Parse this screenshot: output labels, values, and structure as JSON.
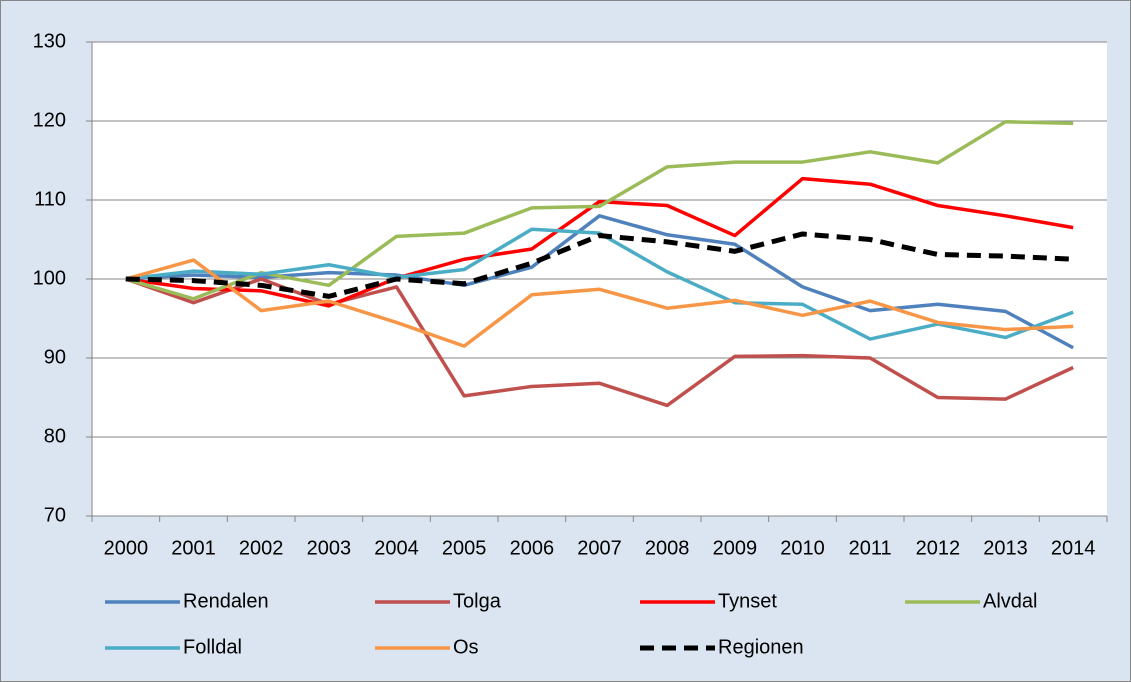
{
  "chart_data": {
    "type": "line",
    "categories": [
      "2000",
      "2001",
      "2002",
      "2003",
      "2004",
      "2005",
      "2006",
      "2007",
      "2008",
      "2009",
      "2010",
      "2011",
      "2012",
      "2013",
      "2014"
    ],
    "ylim": [
      70,
      130
    ],
    "yticks": [
      70,
      80,
      90,
      100,
      110,
      120,
      130
    ],
    "grid": true,
    "legend": "bottom",
    "series": [
      {
        "name": "Rendalen",
        "color": "#4f81bd",
        "values": [
          100,
          100.5,
          100.2,
          100.8,
          100.5,
          99.2,
          101.5,
          108,
          105.6,
          104.4,
          99,
          96,
          96.8,
          95.9,
          91.3
        ]
      },
      {
        "name": "Tolga",
        "color": "#c0504d",
        "values": [
          100,
          97,
          100,
          96.8,
          99,
          85.2,
          86.4,
          86.8,
          84,
          90.2,
          90.3,
          90,
          85,
          84.8,
          88.8
        ]
      },
      {
        "name": "Tynset",
        "color": "#ff0000",
        "values": [
          100,
          98.8,
          98.5,
          96.6,
          100.1,
          102.5,
          103.8,
          109.8,
          109.3,
          105.5,
          112.7,
          112,
          109.3,
          108,
          106.5
        ]
      },
      {
        "name": "Alvdal",
        "color": "#9bbb59",
        "values": [
          100,
          97.5,
          100.8,
          99.2,
          105.4,
          105.8,
          109,
          109.2,
          114.2,
          114.8,
          114.8,
          116.1,
          114.7,
          119.9,
          119.7
        ]
      },
      {
        "name": "Folldal",
        "color": "#4bacc6",
        "values": [
          100,
          101,
          100.6,
          101.8,
          100.2,
          101.2,
          106.3,
          105.8,
          100.9,
          97,
          96.8,
          92.4,
          94.3,
          92.6,
          95.8
        ]
      },
      {
        "name": "Os",
        "color": "#f79646",
        "values": [
          100,
          102.4,
          96,
          97.2,
          94.5,
          91.5,
          98,
          98.7,
          96.3,
          97.3,
          95.4,
          97.2,
          94.5,
          93.6,
          94
        ]
      },
      {
        "name": "Regionen",
        "color": "#000000",
        "dashed": true,
        "values": [
          100,
          99.8,
          99.2,
          97.8,
          100,
          99.4,
          102,
          105.5,
          104.7,
          103.5,
          105.7,
          105,
          103.1,
          102.9,
          102.5
        ]
      }
    ]
  }
}
